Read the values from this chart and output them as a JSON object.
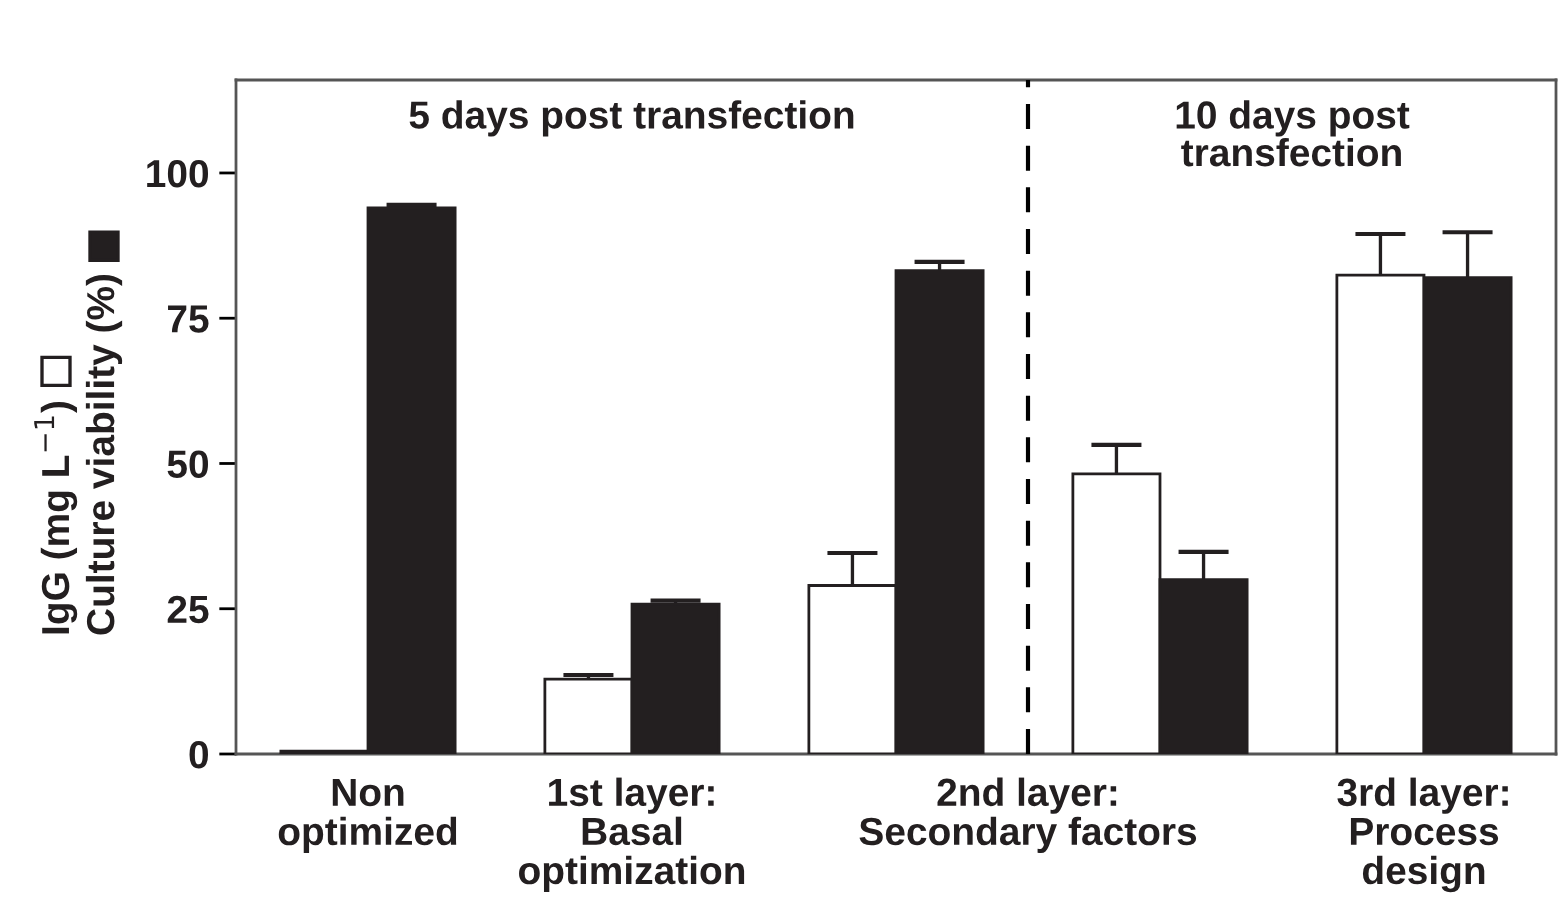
{
  "chart_data": {
    "type": "bar",
    "categories": [
      "Non\noptimized",
      "1st layer:\nBasal\noptimization",
      null,
      null,
      "3rd layer:\nProcess\ndesign"
    ],
    "series": [
      {
        "name": "IgG (mg L$^{−1}$)",
        "color": "#ffffff",
        "values": [
          0.5,
          12.9,
          29.0,
          48.2,
          82.4
        ],
        "errors": [
          null,
          0.7,
          5.6,
          5.0,
          7.1
        ]
      },
      {
        "name": "Culture viability (%)",
        "color": "#231f20",
        "values": [
          94.0,
          25.8,
          83.2,
          30.0,
          82.0
        ],
        "errors": [
          0.5,
          0.6,
          1.5,
          4.8,
          7.8
        ]
      }
    ],
    "ylim": [
      0,
      116
    ],
    "yticks": [
      0,
      25,
      50,
      75,
      100
    ],
    "annotations": [
      "5 days post transfection",
      "10 days post\ntransfection",
      "2nd layer:\nSecondary factors"
    ],
    "legend": "left",
    "grid": false
  }
}
